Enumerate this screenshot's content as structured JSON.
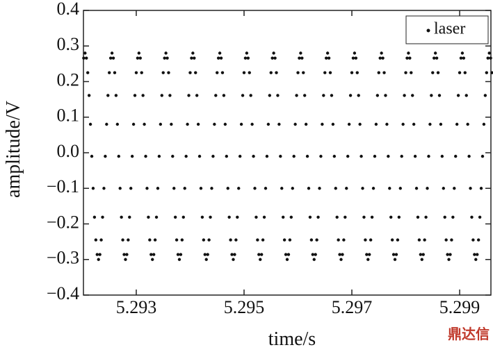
{
  "chart_data": {
    "type": "scatter",
    "xlabel": "time/s",
    "ylabel": "amplitude/V",
    "watermark": "鼎达信",
    "xlim": [
      5.29202,
      5.29958
    ],
    "ylim": [
      -0.4,
      0.4
    ],
    "xticks": [
      5.293,
      5.295,
      5.297,
      5.299
    ],
    "yticks": [
      0.4,
      0.3,
      0.2,
      0.1,
      {
        "value": 0,
        "label": "0.0"
      },
      {
        "value": -0.1,
        "label": "−0.1"
      },
      {
        "value": -0.2,
        "label": "−0.2"
      },
      {
        "value": -0.3,
        "label": "−0.3"
      },
      {
        "value": -0.4,
        "label": "−0.4"
      }
    ],
    "legend": "upper right",
    "x": [
      5.292025,
      5.29205,
      5.292075,
      5.2921,
      5.292125,
      5.29215,
      5.292175,
      5.2922,
      5.292225,
      5.29225,
      5.292275,
      5.2923,
      5.292325,
      5.29235,
      5.292375,
      5.2924,
      5.292425,
      5.29245,
      5.292475,
      5.2925,
      5.292525,
      5.29255,
      5.292575,
      5.2926,
      5.292625,
      5.29265,
      5.292675,
      5.2927,
      5.292725,
      5.29275,
      5.292775,
      5.2928,
      5.292825,
      5.29285,
      5.292875,
      5.2929,
      5.292925,
      5.29295,
      5.292975,
      5.293,
      5.293025,
      5.29305,
      5.293075,
      5.2931,
      5.293125,
      5.29315,
      5.293175,
      5.2932,
      5.293225,
      5.29325,
      5.293275,
      5.2933,
      5.293325,
      5.29335,
      5.293375,
      5.2934,
      5.293425,
      5.29345,
      5.293475,
      5.2935,
      5.293525,
      5.29355,
      5.293575,
      5.2936,
      5.293625,
      5.29365,
      5.293675,
      5.2937,
      5.293725,
      5.29375,
      5.293775,
      5.2938,
      5.293825,
      5.29385,
      5.293875,
      5.2939,
      5.293925,
      5.29395,
      5.293975,
      5.294,
      5.294025,
      5.29405,
      5.294075,
      5.2941,
      5.294125,
      5.29415,
      5.294175,
      5.2942,
      5.294225,
      5.29425,
      5.294275,
      5.2943,
      5.294325,
      5.29435,
      5.294375,
      5.2944,
      5.294425,
      5.29445,
      5.294475,
      5.2945,
      5.294525,
      5.29455,
      5.294575,
      5.2946,
      5.294625,
      5.29465,
      5.294675,
      5.2947,
      5.294725,
      5.29475,
      5.294775,
      5.2948,
      5.294825,
      5.29485,
      5.294875,
      5.2949,
      5.294925,
      5.29495,
      5.294975,
      5.295,
      5.295025,
      5.29505,
      5.295075,
      5.2951,
      5.295125,
      5.29515,
      5.295175,
      5.2952,
      5.295225,
      5.29525,
      5.295275,
      5.2953,
      5.295325,
      5.29535,
      5.295375,
      5.2954,
      5.295425,
      5.29545,
      5.295475,
      5.2955,
      5.295525,
      5.29555,
      5.295575,
      5.2956,
      5.295625,
      5.29565,
      5.295675,
      5.2957,
      5.295725,
      5.29575,
      5.295775,
      5.2958,
      5.295825,
      5.29585,
      5.295875,
      5.2959,
      5.295925,
      5.29595,
      5.295975,
      5.296,
      5.296025,
      5.29605,
      5.296075,
      5.2961,
      5.296125,
      5.29615,
      5.296175,
      5.2962,
      5.296225,
      5.29625,
      5.296275,
      5.2963,
      5.296325,
      5.29635,
      5.296375,
      5.2964,
      5.296425,
      5.29645,
      5.296475,
      5.2965,
      5.296525,
      5.29655,
      5.296575,
      5.2966,
      5.296625,
      5.29665,
      5.296675,
      5.2967,
      5.296725,
      5.29675,
      5.296775,
      5.2968,
      5.296825,
      5.29685,
      5.296875,
      5.2969,
      5.296925,
      5.29695,
      5.296975,
      5.297,
      5.297025,
      5.29705,
      5.297075,
      5.2971,
      5.297125,
      5.29715,
      5.297175,
      5.2972,
      5.297225,
      5.29725,
      5.297275,
      5.2973,
      5.297325,
      5.29735,
      5.297375,
      5.2974,
      5.297425,
      5.29745,
      5.297475,
      5.2975,
      5.297525,
      5.29755,
      5.297575,
      5.2976,
      5.297625,
      5.29765,
      5.297675,
      5.2977,
      5.297725,
      5.29775,
      5.297775,
      5.2978,
      5.297825,
      5.29785,
      5.297875,
      5.2979,
      5.297925,
      5.29795,
      5.297975,
      5.298,
      5.298025,
      5.29805,
      5.298075,
      5.2981,
      5.298125,
      5.29815,
      5.298175,
      5.2982,
      5.298225,
      5.29825,
      5.298275,
      5.2983,
      5.298325,
      5.29835,
      5.298375,
      5.2984,
      5.298425,
      5.29845,
      5.298475,
      5.2985,
      5.298525,
      5.29855,
      5.298575,
      5.2986,
      5.298625,
      5.29865,
      5.298675,
      5.2987,
      5.298725,
      5.29875,
      5.298775,
      5.2988,
      5.298825,
      5.29885,
      5.298875,
      5.2989,
      5.298925,
      5.29895,
      5.298975,
      5.299,
      5.299025,
      5.29905,
      5.299075,
      5.2991,
      5.299125,
      5.29915,
      5.299175,
      5.2992,
      5.299225,
      5.29925,
      5.299275,
      5.2993,
      5.299325,
      5.29935,
      5.299375,
      5.2994,
      5.299425,
      5.29945,
      5.299475,
      5.2995,
      5.299525,
      5.29955,
      5.299575,
      5.2996
    ],
    "series": [
      {
        "name": "laser",
        "color": "#111111",
        "values": [
          0.266,
          0.28,
          0.266,
          0.225,
          0.161,
          0.08,
          -0.01,
          -0.1,
          -0.181,
          -0.245,
          -0.286,
          -0.3,
          -0.286,
          -0.245,
          -0.181,
          -0.1,
          -0.01,
          0.08,
          0.161,
          0.225,
          0.266,
          0.28,
          0.266,
          0.225,
          0.161,
          0.08,
          -0.01,
          -0.1,
          -0.181,
          -0.245,
          -0.286,
          -0.3,
          -0.286,
          -0.245,
          -0.181,
          -0.1,
          -0.01,
          0.08,
          0.161,
          0.225,
          0.266,
          0.28,
          0.266,
          0.225,
          0.161,
          0.08,
          -0.01,
          -0.1,
          -0.181,
          -0.245,
          -0.286,
          -0.3,
          -0.286,
          -0.245,
          -0.181,
          -0.1,
          -0.01,
          0.08,
          0.161,
          0.225,
          0.266,
          0.28,
          0.266,
          0.225,
          0.161,
          0.08,
          -0.01,
          -0.1,
          -0.181,
          -0.245,
          -0.286,
          -0.3,
          -0.286,
          -0.245,
          -0.181,
          -0.1,
          -0.01,
          0.08,
          0.161,
          0.225,
          0.266,
          0.28,
          0.266,
          0.225,
          0.161,
          0.08,
          -0.01,
          -0.1,
          -0.181,
          -0.245,
          -0.286,
          -0.3,
          -0.286,
          -0.245,
          -0.181,
          -0.1,
          -0.01,
          0.08,
          0.161,
          0.225,
          0.266,
          0.28,
          0.266,
          0.225,
          0.161,
          0.08,
          -0.01,
          -0.1,
          -0.181,
          -0.245,
          -0.286,
          -0.3,
          -0.286,
          -0.245,
          -0.181,
          -0.1,
          -0.01,
          0.08,
          0.161,
          0.225,
          0.266,
          0.28,
          0.266,
          0.225,
          0.161,
          0.08,
          -0.01,
          -0.1,
          -0.181,
          -0.245,
          -0.286,
          -0.3,
          -0.286,
          -0.245,
          -0.181,
          -0.1,
          -0.01,
          0.08,
          0.161,
          0.225,
          0.266,
          0.28,
          0.266,
          0.225,
          0.161,
          0.08,
          -0.01,
          -0.1,
          -0.181,
          -0.245,
          -0.286,
          -0.3,
          -0.286,
          -0.245,
          -0.181,
          -0.1,
          -0.01,
          0.08,
          0.161,
          0.225,
          0.266,
          0.28,
          0.266,
          0.225,
          0.161,
          0.08,
          -0.01,
          -0.1,
          -0.181,
          -0.245,
          -0.286,
          -0.3,
          -0.286,
          -0.245,
          -0.181,
          -0.1,
          -0.01,
          0.08,
          0.161,
          0.225,
          0.266,
          0.28,
          0.266,
          0.225,
          0.161,
          0.08,
          -0.01,
          -0.1,
          -0.181,
          -0.245,
          -0.286,
          -0.3,
          -0.286,
          -0.245,
          -0.181,
          -0.1,
          -0.01,
          0.08,
          0.161,
          0.225,
          0.266,
          0.28,
          0.266,
          0.225,
          0.161,
          0.08,
          -0.01,
          -0.1,
          -0.181,
          -0.245,
          -0.286,
          -0.3,
          -0.286,
          -0.245,
          -0.181,
          -0.1,
          -0.01,
          0.08,
          0.161,
          0.225,
          0.266,
          0.28,
          0.266,
          0.225,
          0.161,
          0.08,
          -0.01,
          -0.1,
          -0.181,
          -0.245,
          -0.286,
          -0.3,
          -0.286,
          -0.245,
          -0.181,
          -0.1,
          -0.01,
          0.08,
          0.161,
          0.225,
          0.266,
          0.28,
          0.266,
          0.225,
          0.161,
          0.08,
          -0.01,
          -0.1,
          -0.181,
          -0.245,
          -0.286,
          -0.3,
          -0.286,
          -0.245,
          -0.181,
          -0.1,
          -0.01,
          0.08,
          0.161,
          0.225,
          0.266,
          0.28,
          0.266,
          0.225,
          0.161,
          0.08,
          -0.01,
          -0.1,
          -0.181,
          -0.245,
          -0.286,
          -0.3,
          -0.286,
          -0.245,
          -0.181,
          -0.1,
          -0.01,
          0.08,
          0.161,
          0.225,
          0.266,
          0.28,
          0.266,
          0.225,
          0.161,
          0.08,
          -0.01,
          -0.1,
          -0.181,
          -0.245,
          -0.286,
          -0.3,
          -0.286,
          -0.245,
          -0.181,
          -0.1,
          -0.01,
          0.08,
          0.161,
          0.225,
          0.266,
          0.28,
          0.266,
          0.225
        ]
      }
    ]
  }
}
